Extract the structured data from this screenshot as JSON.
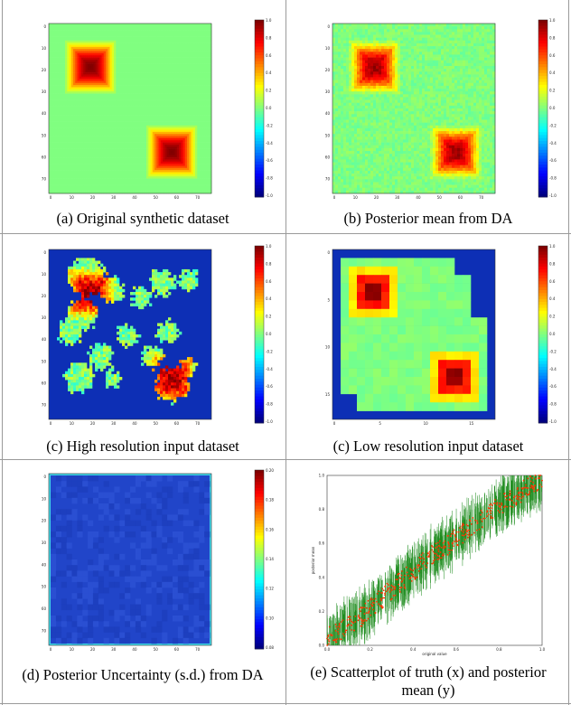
{
  "colors": {
    "field_bg": "#8ee88a",
    "blob_core": "#b01010",
    "map_bg": "#0d2fb5",
    "uncert_bg": "#2145c9",
    "scatter_point": "#ff3300",
    "scatter_err": "#1a8a1a"
  },
  "panels": [
    {
      "id": "a",
      "caption": "(a) Original synthetic dataset",
      "yticks": [
        "0",
        "10",
        "20",
        "30",
        "40",
        "50",
        "60",
        "70"
      ],
      "xticks": [
        "0",
        "10",
        "20",
        "30",
        "40",
        "50",
        "60",
        "70"
      ],
      "cbticks": [
        "1.0",
        "0.8",
        "0.6",
        "0.4",
        "0.2",
        "0.0",
        "-0.2",
        "-0.4",
        "-0.6",
        "-0.8",
        "-1.0"
      ]
    },
    {
      "id": "b",
      "caption": "(b) Posterior mean from DA",
      "yticks": [
        "0",
        "10",
        "20",
        "30",
        "40",
        "50",
        "60",
        "70"
      ],
      "xticks": [
        "0",
        "10",
        "20",
        "30",
        "40",
        "50",
        "60",
        "70"
      ],
      "cbticks": [
        "1.0",
        "0.8",
        "0.6",
        "0.4",
        "0.2",
        "0.0",
        "-0.2",
        "-0.4",
        "-0.6",
        "-0.8",
        "-1.0"
      ]
    },
    {
      "id": "c1",
      "caption": "(c) High resolution input dataset",
      "yticks": [
        "0",
        "10",
        "20",
        "30",
        "40",
        "50",
        "60",
        "70"
      ],
      "xticks": [
        "0",
        "10",
        "20",
        "30",
        "40",
        "50",
        "60",
        "70"
      ],
      "cbticks": [
        "1.0",
        "0.8",
        "0.6",
        "0.4",
        "0.2",
        "0.0",
        "-0.2",
        "-0.4",
        "-0.6",
        "-0.8",
        "-1.0"
      ]
    },
    {
      "id": "c2",
      "caption": "(c) Low resolution input dataset",
      "yticks": [
        "0",
        "5",
        "10",
        "15"
      ],
      "xticks": [
        "0",
        "5",
        "10",
        "15"
      ],
      "cbticks": [
        "1.0",
        "0.8",
        "0.6",
        "0.4",
        "0.2",
        "0.0",
        "-0.2",
        "-0.4",
        "-0.6",
        "-0.8",
        "-1.0"
      ]
    },
    {
      "id": "d",
      "caption": "(d) Posterior Uncertainty (s.d.) from DA",
      "yticks": [
        "0",
        "10",
        "20",
        "30",
        "40",
        "50",
        "60",
        "70"
      ],
      "xticks": [
        "0",
        "10",
        "20",
        "30",
        "40",
        "50",
        "60",
        "70"
      ],
      "cbticks": [
        "0.20",
        "0.18",
        "0.16",
        "0.14",
        "0.12",
        "0.10",
        "0.08"
      ]
    },
    {
      "id": "e",
      "caption_line1": "(e) Scatterplot of truth (x) and posterior",
      "caption_line2": "mean (y)",
      "xlabel": "original value",
      "ylabel": "posterior mean",
      "yticks": [
        "1.0",
        "0.8",
        "0.6",
        "0.4",
        "0.2",
        "0.0"
      ],
      "xticks": [
        "0.0",
        "0.2",
        "0.4",
        "0.6",
        "0.8",
        "1.0"
      ]
    }
  ],
  "chart_data": {
    "type": "scatter",
    "xlabel": "original value",
    "ylabel": "posterior mean",
    "xlim": [
      0,
      1
    ],
    "ylim": [
      0,
      1
    ],
    "series": [
      {
        "values": [
          [
            0.0,
            0.04
          ],
          [
            0.05,
            0.08
          ],
          [
            0.1,
            0.12
          ],
          [
            0.15,
            0.16
          ],
          [
            0.2,
            0.22
          ],
          [
            0.25,
            0.27
          ],
          [
            0.3,
            0.33
          ],
          [
            0.35,
            0.38
          ],
          [
            0.4,
            0.44
          ],
          [
            0.45,
            0.49
          ],
          [
            0.5,
            0.54
          ],
          [
            0.55,
            0.58
          ],
          [
            0.6,
            0.63
          ],
          [
            0.65,
            0.68
          ],
          [
            0.7,
            0.72
          ],
          [
            0.75,
            0.77
          ],
          [
            0.8,
            0.82
          ],
          [
            0.85,
            0.86
          ],
          [
            0.9,
            0.9
          ],
          [
            0.95,
            0.94
          ],
          [
            1.0,
            0.97
          ]
        ]
      }
    ]
  }
}
